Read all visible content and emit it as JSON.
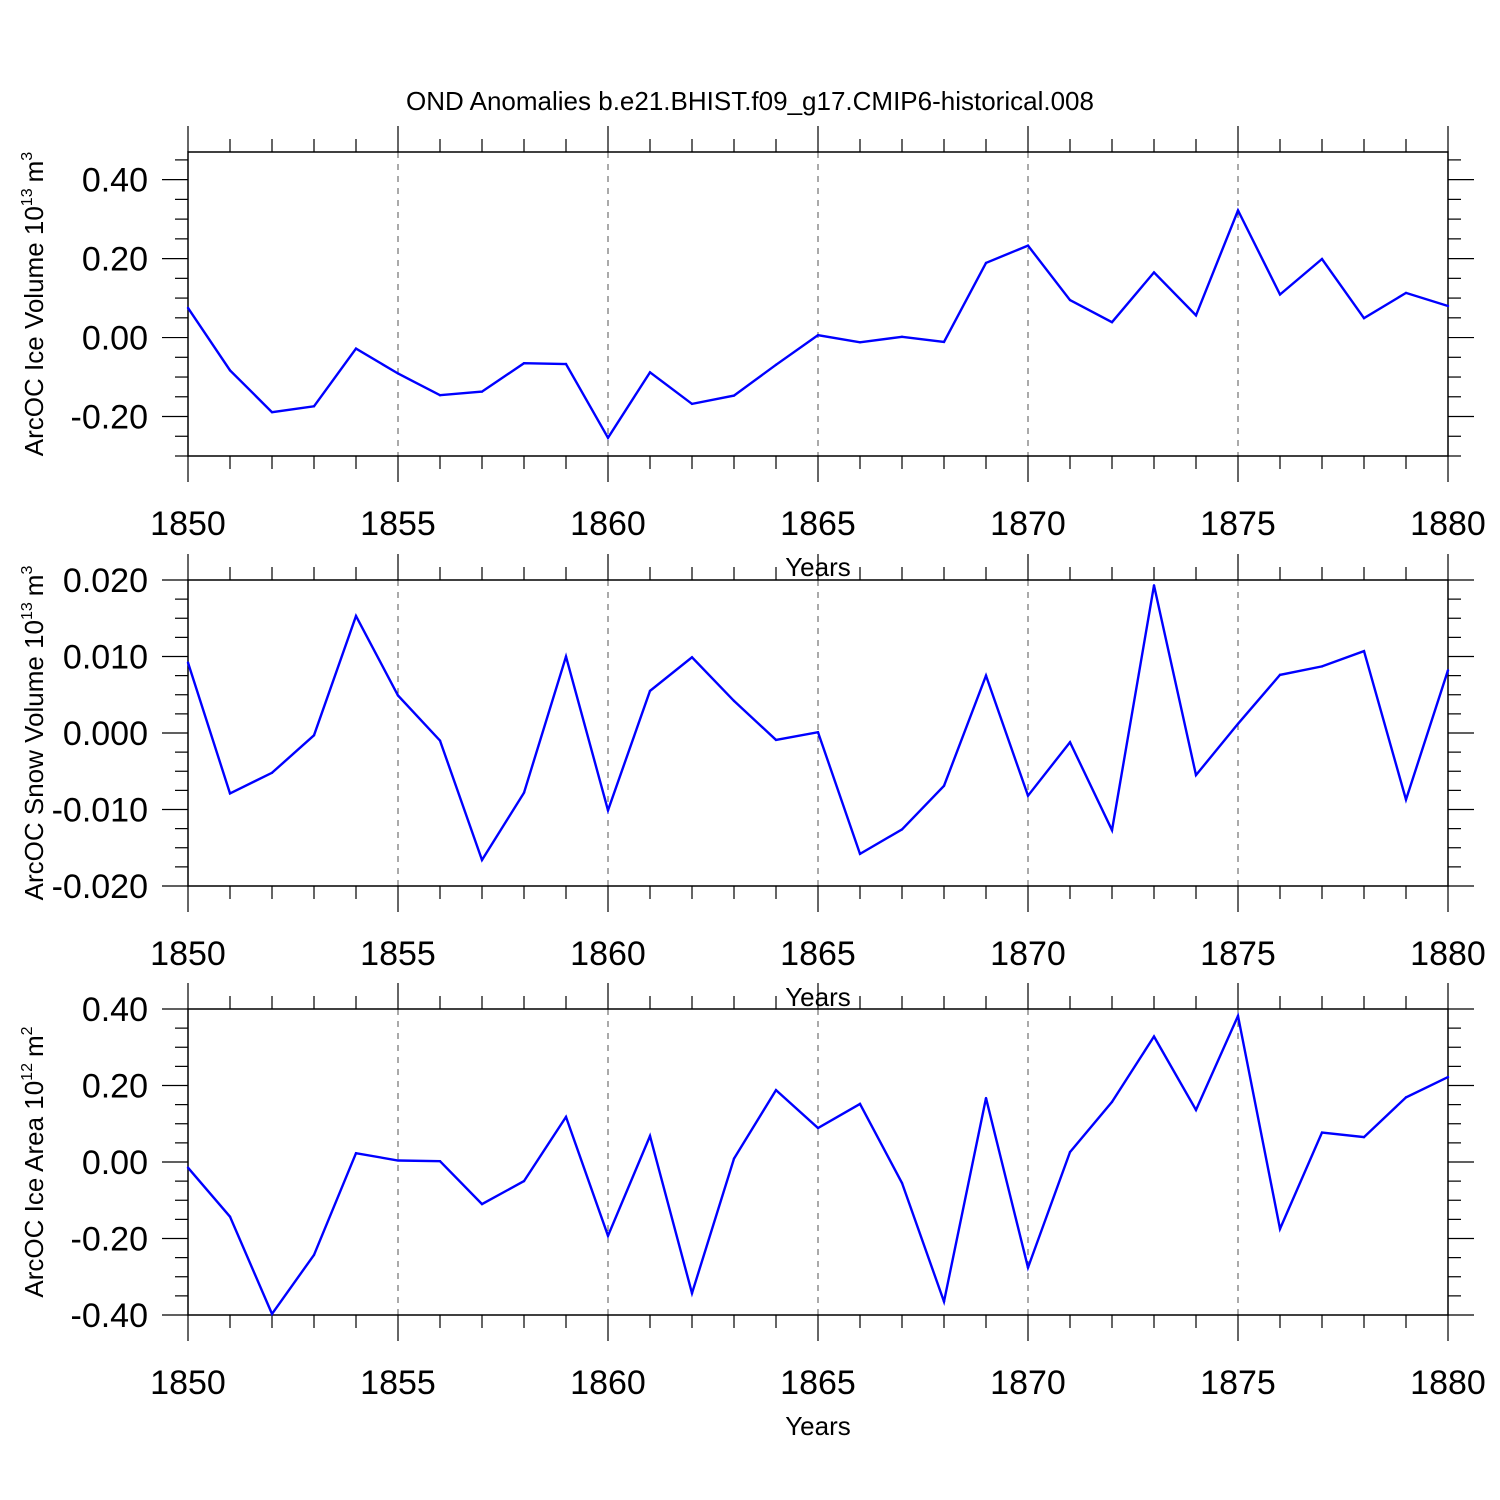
{
  "title": "OND Anomalies b.e21.BHIST.f09_g17.CMIP6-historical.008",
  "colors": {
    "line": "#0000ff",
    "axis": "#000000",
    "grid": "#555555"
  },
  "chart_data": [
    {
      "type": "line",
      "xlabel": "Years",
      "ylabel": "ArcOC Ice Volume 10",
      "ylabel_sup": "13",
      "ylabel_unit": "m",
      "ylabel_unit_sup": "3",
      "xlim": [
        1850,
        1880
      ],
      "ylim": [
        -0.3,
        0.47
      ],
      "xticks": [
        "1850",
        "1855",
        "1860",
        "1865",
        "1870",
        "1875",
        "1880"
      ],
      "yticks": [
        "0.40",
        "0.20",
        "0.00",
        "-0.20"
      ],
      "grid": "vertical dashed at major x ticks",
      "x": [
        1850,
        1851,
        1852,
        1853,
        1854,
        1855,
        1856,
        1857,
        1858,
        1859,
        1860,
        1861,
        1862,
        1863,
        1864,
        1865,
        1866,
        1867,
        1868,
        1869,
        1870,
        1871,
        1872,
        1873,
        1874,
        1875,
        1876,
        1877,
        1878,
        1879,
        1880
      ],
      "values": [
        0.075,
        -0.083,
        -0.189,
        -0.174,
        -0.028,
        -0.091,
        -0.146,
        -0.137,
        -0.065,
        -0.067,
        -0.254,
        -0.088,
        -0.168,
        -0.147,
        -0.069,
        0.006,
        -0.012,
        0.002,
        -0.011,
        0.189,
        0.233,
        0.095,
        0.039,
        0.165,
        0.056,
        0.322,
        0.109,
        0.199,
        0.049,
        0.113,
        0.08
      ]
    },
    {
      "type": "line",
      "xlabel": "Years",
      "ylabel": "ArcOC Snow Volume 10",
      "ylabel_sup": "13",
      "ylabel_unit": "m",
      "ylabel_unit_sup": "3",
      "xlim": [
        1850,
        1880
      ],
      "ylim": [
        -0.02,
        0.02
      ],
      "xticks": [
        "1850",
        "1855",
        "1860",
        "1865",
        "1870",
        "1875",
        "1880"
      ],
      "yticks": [
        "0.020",
        "0.010",
        "0.000",
        "-0.010",
        "-0.020"
      ],
      "grid": "vertical dashed at major x ticks",
      "x": [
        1850,
        1851,
        1852,
        1853,
        1854,
        1855,
        1856,
        1857,
        1858,
        1859,
        1860,
        1861,
        1862,
        1863,
        1864,
        1865,
        1866,
        1867,
        1868,
        1869,
        1870,
        1871,
        1872,
        1873,
        1874,
        1875,
        1876,
        1877,
        1878,
        1879,
        1880
      ],
      "values": [
        0.0092,
        -0.0079,
        -0.0052,
        -0.0003,
        0.0153,
        0.0049,
        -0.001,
        -0.0166,
        -0.0078,
        0.01,
        -0.0101,
        0.0055,
        0.0099,
        0.0042,
        -0.0009,
        0.0001,
        -0.0158,
        -0.0126,
        -0.0069,
        0.0075,
        -0.0082,
        -0.0012,
        -0.0127,
        0.0193,
        -0.0055,
        0.0012,
        0.0076,
        0.0087,
        0.0107,
        -0.0087,
        0.0082
      ]
    },
    {
      "type": "line",
      "xlabel": "Years",
      "ylabel": "ArcOC Ice Area 10",
      "ylabel_sup": "12",
      "ylabel_unit": "m",
      "ylabel_unit_sup": "2",
      "xlim": [
        1850,
        1880
      ],
      "ylim": [
        -0.4,
        0.4
      ],
      "xticks": [
        "1850",
        "1855",
        "1860",
        "1865",
        "1870",
        "1875",
        "1880"
      ],
      "yticks": [
        "0.40",
        "0.20",
        "0.00",
        "-0.20",
        "-0.40"
      ],
      "grid": "vertical dashed at major x ticks",
      "x": [
        1850,
        1851,
        1852,
        1853,
        1854,
        1855,
        1856,
        1857,
        1858,
        1859,
        1860,
        1861,
        1862,
        1863,
        1864,
        1865,
        1866,
        1867,
        1868,
        1869,
        1870,
        1871,
        1872,
        1873,
        1874,
        1875,
        1876,
        1877,
        1878,
        1879,
        1880
      ],
      "values": [
        -0.015,
        -0.143,
        -0.397,
        -0.243,
        0.023,
        0.004,
        0.002,
        -0.11,
        -0.05,
        0.118,
        -0.193,
        0.068,
        -0.343,
        0.009,
        0.188,
        0.089,
        0.152,
        -0.055,
        -0.365,
        0.167,
        -0.276,
        0.026,
        0.157,
        0.328,
        0.136,
        0.382,
        -0.175,
        0.077,
        0.065,
        0.169,
        0.222
      ]
    }
  ]
}
